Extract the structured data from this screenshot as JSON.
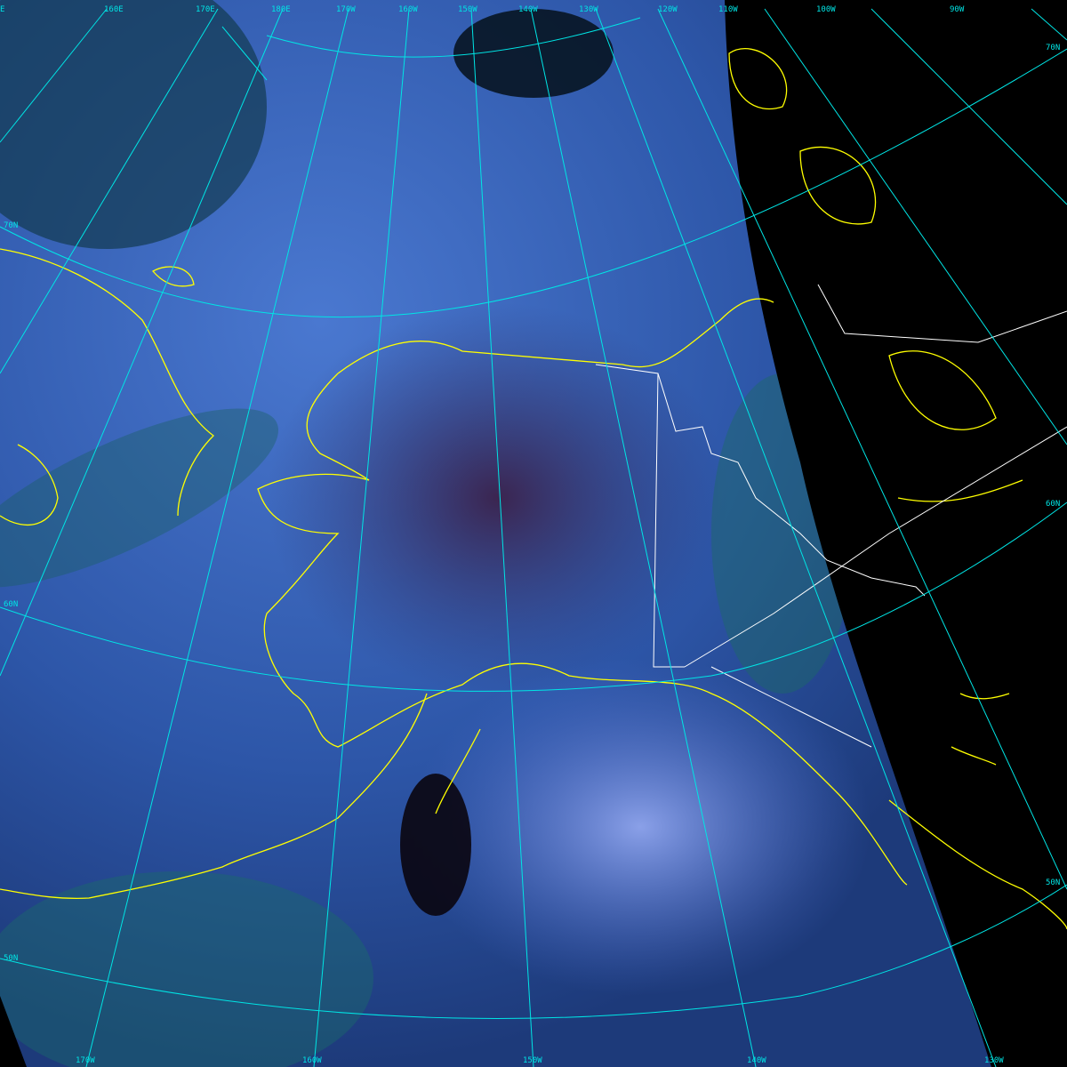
{
  "image": {
    "type": "satellite-composite",
    "colors": {
      "graticule": "#00e5e5",
      "coastline": "#ffff00",
      "border": "#ffffff",
      "no_data": "#000000",
      "ocean_cloud": "#3a64b8",
      "land": "#3a2a5a"
    }
  },
  "labels": {
    "top": [
      "E",
      "160E",
      "170E",
      "180E",
      "170W",
      "160W",
      "150W",
      "140W",
      "130W",
      "120W",
      "110W",
      "100W",
      "90W"
    ],
    "left": [
      "70N",
      "60N",
      "50N"
    ],
    "right": [
      "70N",
      "60N",
      "50N"
    ],
    "bottom": [
      "170W",
      "160W",
      "150W",
      "140W",
      "130W"
    ]
  }
}
